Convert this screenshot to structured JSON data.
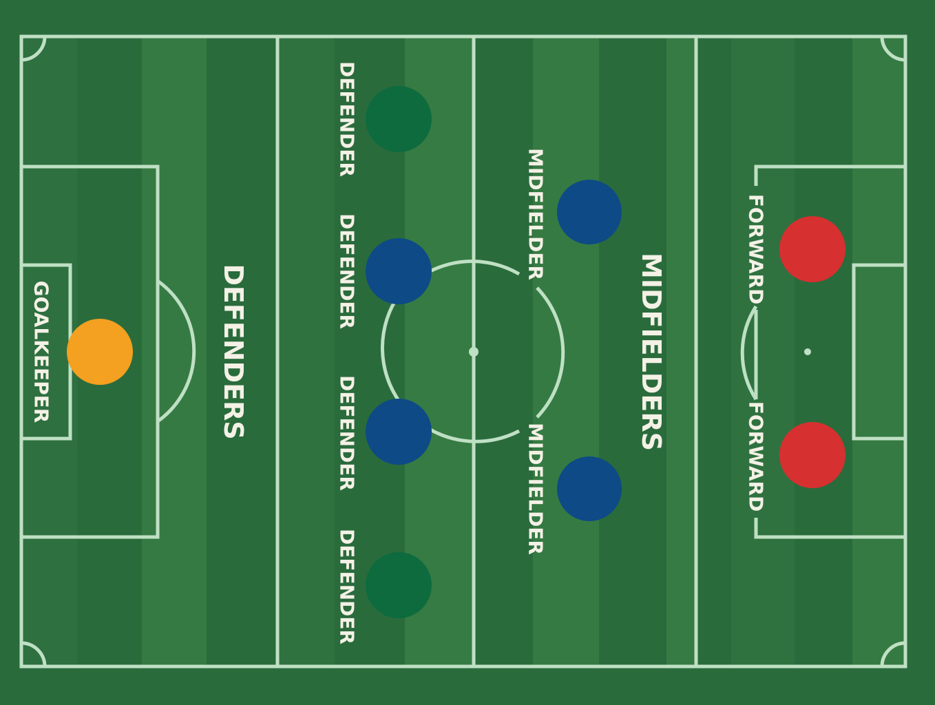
{
  "formation": {
    "section_labels": {
      "defenders": "DEFENDERS",
      "midfielders": "MIDFIELDERS"
    },
    "players": [
      {
        "id": "goalkeeper",
        "role": "GOALKEEPER",
        "color": "#f4a020"
      },
      {
        "id": "defender-1",
        "role": "DEFENDER",
        "color": "#0d6b3e"
      },
      {
        "id": "defender-2",
        "role": "DEFENDER",
        "color": "#0e4a86"
      },
      {
        "id": "defender-3",
        "role": "DEFENDER",
        "color": "#0e4a86"
      },
      {
        "id": "defender-4",
        "role": "DEFENDER",
        "color": "#0d6b3e"
      },
      {
        "id": "midfielder-1",
        "role": "MIDFIELDER",
        "color": "#0e4a86"
      },
      {
        "id": "midfielder-2",
        "role": "MIDFIELDER",
        "color": "#0e4a86"
      },
      {
        "id": "forward-1",
        "role": "FORWARD",
        "color": "#d63030"
      },
      {
        "id": "forward-2",
        "role": "FORWARD",
        "color": "#d63030"
      }
    ]
  },
  "colors": {
    "pitch_dark": "#2a6b3c",
    "pitch_light": "#357a42",
    "line": "#bfe0c4",
    "text": "#f4f1e6"
  }
}
